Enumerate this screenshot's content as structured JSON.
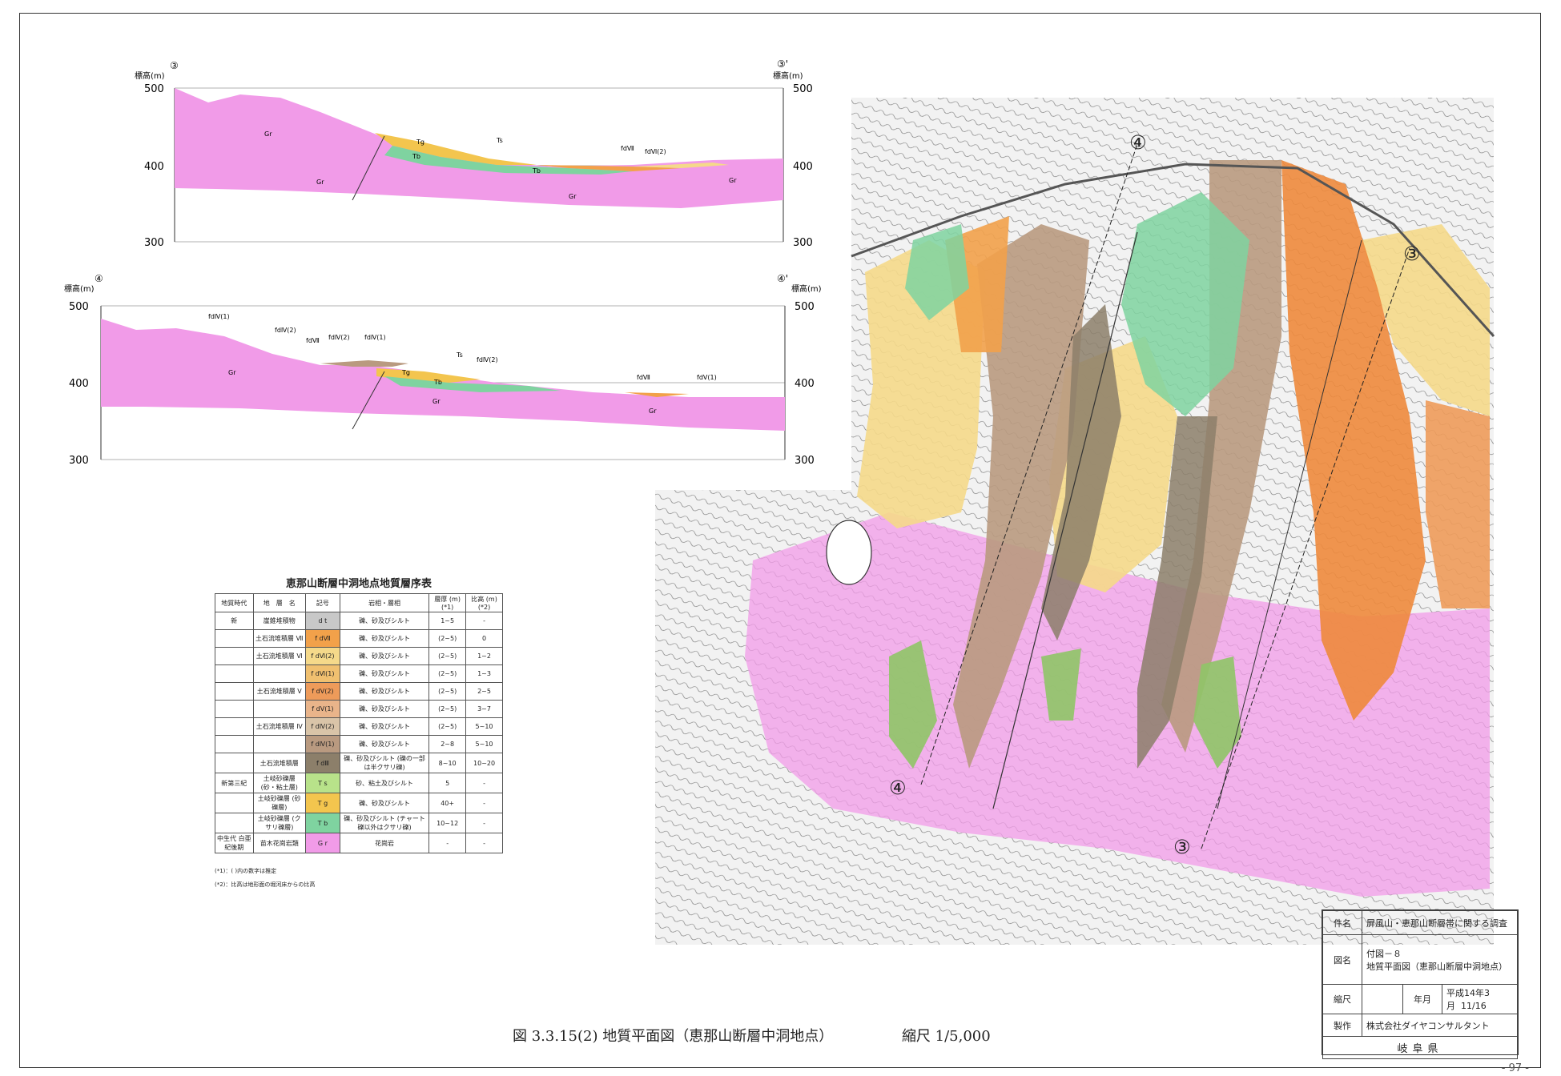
{
  "sections": [
    {
      "id": "section-3",
      "start_mark": "③",
      "end_mark": "③'",
      "axis_label": "標高(m)",
      "ticks": [
        "500",
        "400",
        "300"
      ],
      "labels": [
        "Gr",
        "Tg",
        "Tb",
        "Ts",
        "fdⅦ",
        "fdⅥ(2)",
        "Tb",
        "Gr",
        "Gr",
        "Gr"
      ]
    },
    {
      "id": "section-4",
      "start_mark": "④",
      "end_mark": "④'",
      "axis_label": "標高(m)",
      "ticks": [
        "500",
        "400",
        "300"
      ],
      "labels": [
        "fdⅣ(1)",
        "fdⅣ(2)",
        "fdⅦ",
        "fdⅣ(2)",
        "fdⅣ(1)",
        "Ts",
        "fdⅣ(2)",
        "Gr",
        "Tg",
        "Tb",
        "Gr",
        "fdⅦ",
        "fdⅤ(1)",
        "Gr"
      ]
    }
  ],
  "legend": {
    "title": "恵那山断層中洞地点地質層序表",
    "headers": [
      "地質時代",
      "地　層　名",
      "記号",
      "岩相・層相",
      "層厚 (m) (*1)",
      "比高 (m) (*2)"
    ],
    "rows": [
      {
        "era": "新",
        "name": "崖錐堆積物",
        "symbol": "d t",
        "color": "#c8c8c8",
        "lith": "礫、砂及びシルト",
        "thick": "1~5",
        "rel": "-"
      },
      {
        "era": "",
        "name": "土石流堆積層 Ⅶ",
        "symbol": "f dⅦ",
        "color": "#f2a14a",
        "lith": "礫、砂及びシルト",
        "thick": "(2~5)",
        "rel": "0"
      },
      {
        "era": "",
        "name": "土石流堆積層 Ⅵ",
        "symbol": "f dⅥ(2)",
        "color": "#f5d98a",
        "lith": "礫、砂及びシルト",
        "thick": "(2~5)",
        "rel": "1~2"
      },
      {
        "era": "",
        "name": "",
        "symbol": "f dⅥ(1)",
        "color": "#f0c070",
        "lith": "礫、砂及びシルト",
        "thick": "(2~5)",
        "rel": "1~3"
      },
      {
        "era": "",
        "name": "土石流堆積層 Ⅴ",
        "symbol": "f dⅤ(2)",
        "color": "#ee9b5a",
        "lith": "礫、砂及びシルト",
        "thick": "(2~5)",
        "rel": "2~5"
      },
      {
        "era": "",
        "name": "",
        "symbol": "f dⅤ(1)",
        "color": "#e9b48a",
        "lith": "礫、砂及びシルト",
        "thick": "(2~5)",
        "rel": "3~7"
      },
      {
        "era": "",
        "name": "土石流堆積層 Ⅳ",
        "symbol": "f dⅣ(2)",
        "color": "#d9c4a8",
        "lith": "礫、砂及びシルト",
        "thick": "(2~5)",
        "rel": "5~10"
      },
      {
        "era": "",
        "name": "",
        "symbol": "f dⅣ(1)",
        "color": "#b99a80",
        "lith": "礫、砂及びシルト",
        "thick": "2~8",
        "rel": "5~10"
      },
      {
        "era": "",
        "name": "土石流堆積層",
        "symbol": "f dⅢ",
        "color": "#8c7f6a",
        "lith": "礫、砂及びシルト (礫の一部は半クサリ礫)",
        "thick": "8~10",
        "rel": "10~20"
      },
      {
        "era": "新第三紀",
        "name": "土岐砂礫層 (砂・粘土層)",
        "symbol": "T s",
        "color": "#b8e28a",
        "lith": "砂、粘土及びシルト",
        "thick": "5",
        "rel": "-"
      },
      {
        "era": "",
        "name": "土岐砂礫層 (砂礫層)",
        "symbol": "T g",
        "color": "#f3c54e",
        "lith": "礫、砂及びシルト",
        "thick": "40+",
        "rel": "-"
      },
      {
        "era": "",
        "name": "土岐砂礫層 (クサリ礫層)",
        "symbol": "T b",
        "color": "#7fd3a0",
        "lith": "礫、砂及びシルト (チャート礫以外はクサリ礫)",
        "thick": "10~12",
        "rel": "-"
      },
      {
        "era": "中生代 白亜紀後期",
        "name": "苗木花崗岩類",
        "symbol": "G r",
        "color": "#f19be8",
        "lith": "花崗岩",
        "thick": "-",
        "rel": "-"
      }
    ],
    "note1": "(*1)：( )内の数字は推定",
    "note2": "(*2)：比高は地形面の堀河床からの比高"
  },
  "map_marks": [
    "④",
    "③",
    "④",
    "③"
  ],
  "title_block": {
    "k_subject": "件名",
    "subject": "屏風山・恵那山断層帯に関する調査",
    "k_figname": "図名",
    "figname_1": "付図－８",
    "figname_2": "地質平面図（恵那山断層中洞地点）",
    "k_scale": "縮尺",
    "k_date": "年月",
    "date": "平成14年3月",
    "page": "11/16",
    "k_maker": "製作",
    "maker": "株式会社ダイヤコンサルタント",
    "issuer": "岐阜県"
  },
  "caption": {
    "figure": "図 3.3.15(2)  地質平面図（恵那山断層中洞地点）",
    "scale": "縮尺 1/5,000"
  },
  "sheet_no": "- 97 -",
  "colors": {
    "granite": "#f19be8",
    "tg": "#f3c54e",
    "tb": "#7fd3a0",
    "fd7": "#f2a14a",
    "fd4": "#b99a80",
    "fd6": "#f5d98a",
    "ts": "#b8e28a",
    "fd3": "#8c7f6a"
  }
}
